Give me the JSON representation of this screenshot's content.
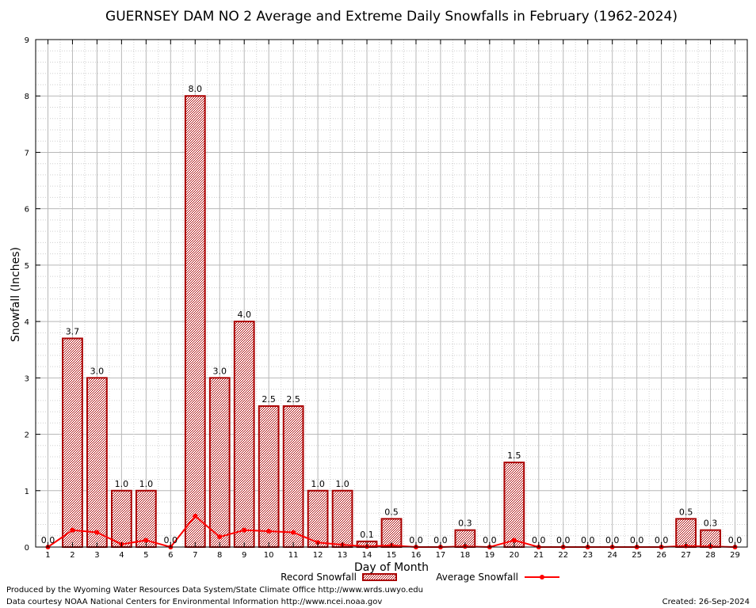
{
  "chart_data": {
    "type": "bar",
    "title": "GUERNSEY DAM NO 2 Average and Extreme Daily Snowfalls in February (1962-2024)",
    "xlabel": "Day of Month",
    "ylabel": "Snowfall (Inches)",
    "ylim": [
      0,
      9
    ],
    "yticks": [
      "0",
      "1",
      "2",
      "3",
      "4",
      "5",
      "6",
      "7",
      "8",
      "9"
    ],
    "categories": [
      "1",
      "2",
      "3",
      "4",
      "5",
      "6",
      "7",
      "8",
      "9",
      "10",
      "11",
      "12",
      "13",
      "14",
      "15",
      "16",
      "17",
      "18",
      "19",
      "20",
      "21",
      "22",
      "23",
      "24",
      "25",
      "26",
      "27",
      "28",
      "29"
    ],
    "series": [
      {
        "name": "Record Snowfall",
        "type": "bar",
        "color": "#aa0000",
        "values": [
          0.0,
          3.7,
          3.0,
          1.0,
          1.0,
          0.0,
          8.0,
          3.0,
          4.0,
          2.5,
          2.5,
          1.0,
          1.0,
          0.1,
          0.5,
          0.0,
          0.0,
          0.3,
          0.0,
          1.5,
          0.0,
          0.0,
          0.0,
          0.0,
          0.0,
          0.0,
          0.5,
          0.3,
          0.0
        ],
        "labels": [
          "0.0",
          "3.7",
          "3.0",
          "1.0",
          "1.0",
          "0.0",
          "8.0",
          "3.0",
          "4.0",
          "2.5",
          "2.5",
          "1.0",
          "1.0",
          "0.1",
          "0.5",
          "0.0",
          "0.0",
          "0.3",
          "0.0",
          "1.5",
          "0.0",
          "0.0",
          "0.0",
          "0.0",
          "0.0",
          "0.0",
          "0.5",
          "0.3",
          "0.0"
        ]
      },
      {
        "name": "Average Snowfall",
        "type": "line",
        "color": "#ff0000",
        "values": [
          0.0,
          0.3,
          0.26,
          0.05,
          0.12,
          0.0,
          0.55,
          0.18,
          0.3,
          0.28,
          0.26,
          0.08,
          0.04,
          0.01,
          0.03,
          0.0,
          0.0,
          0.01,
          0.0,
          0.12,
          0.0,
          0.0,
          0.0,
          0.0,
          0.0,
          0.0,
          0.02,
          0.01,
          0.0
        ]
      }
    ],
    "grid": true,
    "legend": "bottom-center"
  },
  "footer": {
    "produced_by": "Produced by the Wyoming Water Resources Data System/State Climate Office http://www.wrds.uwyo.edu",
    "data_courtesy": "Data courtesy NOAA National Centers for Environmental Information http://www.ncei.noaa.gov",
    "created": "Created:  26-Sep-2024"
  }
}
